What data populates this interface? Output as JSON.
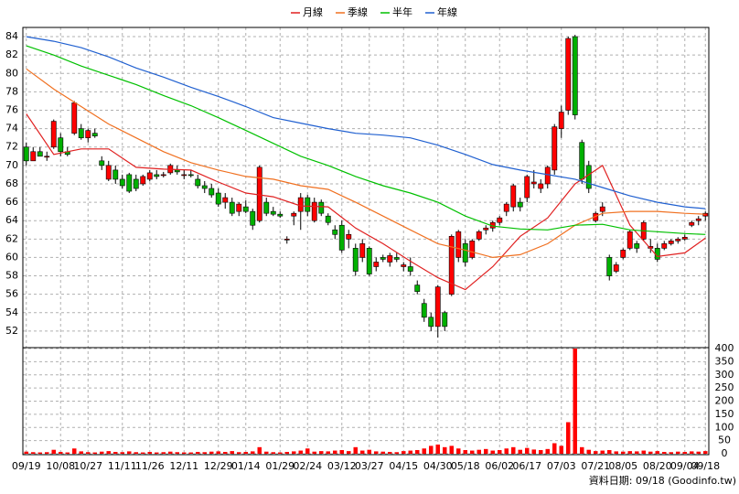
{
  "chart_data": {
    "type": "candlestick",
    "footer": "資料日期: 09/18  (Goodinfo.tw)",
    "grid": true,
    "xlim": [
      -0.5,
      99.5
    ],
    "xticks": [
      {
        "value": 0,
        "label": "09/19"
      },
      {
        "value": 5,
        "label": "10/08"
      },
      {
        "value": 9,
        "label": "10/27"
      },
      {
        "value": 14,
        "label": "11/11"
      },
      {
        "value": 18,
        "label": "11/26"
      },
      {
        "value": 23,
        "label": "12/11"
      },
      {
        "value": 28,
        "label": "12/29"
      },
      {
        "value": 32,
        "label": "01/14"
      },
      {
        "value": 37,
        "label": "01/29"
      },
      {
        "value": 41,
        "label": "02/24"
      },
      {
        "value": 46,
        "label": "03/12"
      },
      {
        "value": 50,
        "label": "03/27"
      },
      {
        "value": 55,
        "label": "04/15"
      },
      {
        "value": 60,
        "label": "04/30"
      },
      {
        "value": 64,
        "label": "05/18"
      },
      {
        "value": 69,
        "label": "06/02"
      },
      {
        "value": 73,
        "label": "06/17"
      },
      {
        "value": 78,
        "label": "07/03"
      },
      {
        "value": 83,
        "label": "07/21"
      },
      {
        "value": 87,
        "label": "08/05"
      },
      {
        "value": 92,
        "label": "08/20"
      },
      {
        "value": 96,
        "label": "09/04"
      },
      {
        "value": 99,
        "label": "09/18"
      }
    ],
    "ylim": [
      50.2,
      85
    ],
    "yticks": [
      52,
      54,
      56,
      58,
      60,
      62,
      64,
      66,
      68,
      70,
      72,
      74,
      76,
      78,
      80,
      82,
      84
    ],
    "up_color": "#ff0000",
    "down_color": "#00b000",
    "candles": {
      "open": [
        72,
        70.5,
        71.5,
        71,
        72,
        73,
        71.5,
        73.5,
        74,
        73,
        73.5,
        70.5,
        68.5,
        69.5,
        68.5,
        69,
        68.5,
        68,
        68.5,
        69,
        69,
        69.2,
        69.5,
        69,
        69,
        68.5,
        67.8,
        67.5,
        67,
        66,
        66,
        65,
        65.5,
        65,
        64,
        66,
        65,
        64.7,
        62,
        64.5,
        65,
        66.5,
        64,
        66,
        64.5,
        63,
        63.5,
        62,
        61,
        60,
        61,
        59,
        60,
        59.5,
        60,
        59,
        59,
        57,
        55,
        53.5,
        52.5,
        54,
        56,
        60,
        61.5,
        60,
        62,
        63,
        63.2,
        63.8,
        65,
        65.5,
        66,
        66.5,
        68,
        67.5,
        68,
        69.5,
        74,
        76,
        84,
        72.5,
        70,
        64,
        65,
        60,
        58.5,
        60,
        61,
        61.5,
        62,
        61,
        61,
        61,
        61.5,
        61.8,
        62,
        63.5,
        64,
        64.5
      ],
      "high": [
        72.5,
        72,
        72,
        71.5,
        75,
        73.5,
        72,
        77,
        74.5,
        74,
        74,
        71,
        70.5,
        70,
        69,
        69.2,
        69,
        69,
        69.5,
        69.5,
        69.3,
        70.2,
        70,
        69.5,
        69.5,
        69,
        68.3,
        68,
        67.5,
        67,
        66.5,
        66,
        66.2,
        65.3,
        70,
        66.5,
        65.5,
        65,
        62.3,
        65,
        67,
        66.8,
        66.5,
        66.3,
        64.8,
        63.5,
        64,
        63,
        61.5,
        62,
        61.2,
        60,
        60.3,
        60.5,
        60.5,
        59.5,
        60,
        57.5,
        55.5,
        54,
        57,
        54.2,
        62.5,
        63,
        62,
        62,
        63,
        63.5,
        64,
        64.5,
        66,
        68,
        66.5,
        69,
        69.5,
        68.5,
        70,
        74.5,
        76.5,
        84,
        84.2,
        72.8,
        70.5,
        65,
        66,
        60.3,
        59.5,
        61,
        63,
        61.8,
        64,
        62,
        61.5,
        61.8,
        62,
        62.2,
        62.5,
        64,
        64.5,
        65
      ],
      "low": [
        70,
        70.5,
        71,
        70.5,
        71.8,
        71,
        71,
        73.3,
        72.8,
        72.5,
        73,
        69.5,
        68.3,
        68,
        67.5,
        67,
        67.2,
        67.8,
        68.3,
        68.5,
        68.7,
        69,
        69,
        68.5,
        68.7,
        67.5,
        67,
        66.5,
        65.5,
        65.3,
        64.5,
        64.5,
        64.8,
        63,
        63.8,
        64.5,
        64.5,
        64.3,
        61.5,
        63.5,
        63,
        64.5,
        63.8,
        64.5,
        63.5,
        62,
        60.5,
        61,
        58,
        59.5,
        58,
        58.5,
        59.5,
        59,
        59.5,
        58.5,
        58,
        56,
        53,
        52,
        51.3,
        52,
        55.8,
        59.5,
        59,
        59.8,
        61.8,
        62.5,
        62.8,
        63.5,
        64.5,
        65,
        65,
        66,
        67.5,
        67,
        67.5,
        69,
        73,
        75.5,
        75,
        68,
        67,
        63.8,
        64.5,
        57.5,
        58.3,
        59.8,
        60.8,
        60.5,
        61.8,
        60.5,
        59.5,
        60.8,
        61.3,
        61.5,
        61.8,
        63.3,
        63.5,
        64
      ],
      "close": [
        70.5,
        71.5,
        71,
        71,
        74.8,
        71.5,
        71.2,
        76.8,
        73,
        73.8,
        73.2,
        70,
        70,
        68.5,
        67.8,
        67.2,
        67.5,
        68.8,
        69.2,
        68.8,
        69,
        70,
        69.3,
        69,
        68.9,
        67.8,
        67.5,
        66.8,
        65.8,
        66.5,
        64.8,
        65.8,
        65,
        63.5,
        69.8,
        64.8,
        64.7,
        64.5,
        62,
        64.8,
        66.5,
        65,
        66,
        64.8,
        63.8,
        62.5,
        60.8,
        62.5,
        58.5,
        61.5,
        58.2,
        59.5,
        59.8,
        60.2,
        59.8,
        59.2,
        58.5,
        56.3,
        53.5,
        52.5,
        56.8,
        52.5,
        62.3,
        62.8,
        59.5,
        61.8,
        62.8,
        63.2,
        63.8,
        64.3,
        65.8,
        67.8,
        65.5,
        68.8,
        68.2,
        68,
        69.8,
        74.2,
        75.8,
        83.8,
        75.5,
        68.5,
        67.5,
        64.8,
        65.5,
        58,
        59.2,
        60.8,
        62.8,
        61,
        63.8,
        61.2,
        59.8,
        61.5,
        61.8,
        62,
        62.2,
        63.8,
        64.2,
        64.8
      ]
    },
    "volume": {
      "color": "#ff0000",
      "ylim": [
        0,
        400
      ],
      "yticks": [
        0,
        50,
        100,
        150,
        200,
        250,
        300,
        350,
        400
      ],
      "values": [
        8,
        6,
        5,
        6,
        15,
        7,
        5,
        20,
        9,
        6,
        5,
        8,
        10,
        7,
        6,
        9,
        6,
        5,
        7,
        5,
        6,
        8,
        6,
        5,
        5,
        7,
        6,
        8,
        9,
        7,
        10,
        6,
        7,
        9,
        25,
        8,
        6,
        5,
        7,
        9,
        12,
        20,
        8,
        10,
        9,
        12,
        14,
        10,
        25,
        12,
        15,
        9,
        8,
        7,
        6,
        10,
        12,
        14,
        20,
        30,
        35,
        25,
        30,
        20,
        14,
        12,
        15,
        18,
        12,
        14,
        20,
        25,
        15,
        22,
        16,
        14,
        18,
        40,
        30,
        120,
        400,
        25,
        15,
        10,
        12,
        14,
        9,
        8,
        10,
        9,
        12,
        8,
        10,
        7,
        6,
        8,
        7,
        9,
        8,
        10
      ]
    },
    "series": [
      {
        "name": "月線",
        "color": "#e02020",
        "x": [
          0,
          4,
          8,
          12,
          16,
          20,
          24,
          28,
          32,
          36,
          40,
          44,
          48,
          52,
          56,
          60,
          64,
          68,
          72,
          76,
          80,
          84,
          88,
          92,
          96,
          99
        ],
        "values": [
          75.6,
          71.2,
          71.8,
          71.8,
          69.8,
          69.6,
          69.5,
          68.2,
          67,
          66.6,
          65.6,
          65.5,
          63.2,
          61.5,
          59.6,
          57.8,
          56.5,
          59,
          62.3,
          64.3,
          68,
          70,
          63.5,
          60.1,
          60.5,
          62.1
        ]
      },
      {
        "name": "季線",
        "color": "#f07020",
        "x": [
          0,
          4,
          8,
          12,
          16,
          20,
          24,
          28,
          32,
          36,
          40,
          44,
          48,
          52,
          56,
          60,
          64,
          68,
          72,
          76,
          80,
          84,
          88,
          92,
          96,
          99
        ],
        "values": [
          80.5,
          78.3,
          76.4,
          74.5,
          73,
          71.5,
          70.3,
          69.5,
          68.8,
          68.5,
          67.8,
          67.4,
          66,
          64.5,
          63,
          61.5,
          60.8,
          60,
          60.3,
          61.5,
          63.5,
          64.8,
          65,
          65,
          64.8,
          64.7
        ]
      },
      {
        "name": "半年",
        "color": "#00c000",
        "x": [
          0,
          4,
          8,
          12,
          16,
          20,
          24,
          28,
          32,
          36,
          40,
          44,
          48,
          52,
          56,
          60,
          64,
          68,
          72,
          76,
          80,
          84,
          88,
          92,
          96,
          99
        ],
        "values": [
          83,
          82,
          80.8,
          79.8,
          78.8,
          77.6,
          76.5,
          75.2,
          73.8,
          72.4,
          71,
          70,
          68.8,
          67.8,
          67,
          66,
          64.5,
          63.4,
          63.1,
          63,
          63.5,
          63.6,
          63,
          62.8,
          62.6,
          62.5
        ]
      },
      {
        "name": "年線",
        "color": "#2060d0",
        "x": [
          0,
          4,
          8,
          12,
          16,
          20,
          24,
          28,
          32,
          36,
          40,
          44,
          48,
          52,
          56,
          60,
          64,
          68,
          72,
          76,
          80,
          84,
          88,
          92,
          96,
          99
        ],
        "values": [
          84,
          83.5,
          82.8,
          81.8,
          80.6,
          79.6,
          78.5,
          77.5,
          76.4,
          75.2,
          74.6,
          74,
          73.5,
          73.3,
          73,
          72.2,
          71.2,
          70.1,
          69.5,
          69,
          68.5,
          67.6,
          66.7,
          66,
          65.5,
          65.3
        ]
      }
    ]
  }
}
